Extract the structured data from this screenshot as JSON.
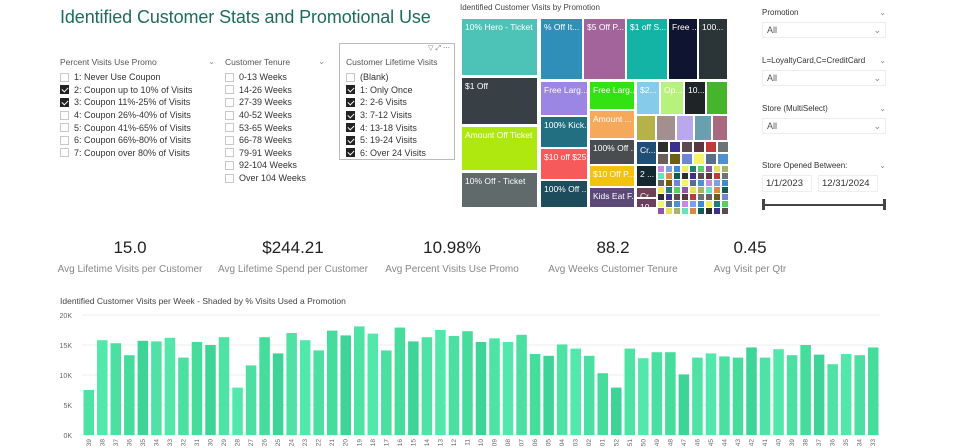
{
  "title": "Identified Customer Stats and Promotional Use",
  "slicers": {
    "promo": {
      "title": "Percent Visits Use Promo",
      "items": [
        {
          "label": "1: Never Use Coupon",
          "checked": false
        },
        {
          "label": "2: Coupon up to 10% of Visits",
          "checked": true
        },
        {
          "label": "3: Coupon 11%-25% of Visits",
          "checked": true
        },
        {
          "label": "4: Coupon 26%-40% of Visits",
          "checked": false
        },
        {
          "label": "5: Coupon 41%-65% of Visits",
          "checked": false
        },
        {
          "label": "6: Coupon 66%-80% of Visits",
          "checked": false
        },
        {
          "label": "7: Coupon over 80% of Visits",
          "checked": false
        }
      ]
    },
    "tenure": {
      "title": "Customer Tenure",
      "items": [
        {
          "label": "0-13 Weeks",
          "checked": false
        },
        {
          "label": "14-26 Weeks",
          "checked": false
        },
        {
          "label": "27-39 Weeks",
          "checked": false
        },
        {
          "label": "40-52 Weeks",
          "checked": false
        },
        {
          "label": "53-65 Weeks",
          "checked": false
        },
        {
          "label": "66-78 Weeks",
          "checked": false
        },
        {
          "label": "79-91 Weeks",
          "checked": false
        },
        {
          "label": "92-104 Weeks",
          "checked": false
        },
        {
          "label": "Over 104 Weeks",
          "checked": false
        }
      ]
    },
    "lifetime": {
      "title": "Customer Lifetime Visits",
      "items": [
        {
          "label": "(Blank)",
          "checked": false
        },
        {
          "label": "1: Only Once",
          "checked": true
        },
        {
          "label": "2: 2-6 Visits",
          "checked": true
        },
        {
          "label": "3: 7-12 Visits",
          "checked": true
        },
        {
          "label": "4: 13-18 Visits",
          "checked": true
        },
        {
          "label": "5: 19-24 Visits",
          "checked": true
        },
        {
          "label": "6: Over 24 Visits",
          "checked": true
        }
      ]
    }
  },
  "treemap": {
    "title": "Identified Customer Visits by Promotion",
    "tiles": [
      {
        "label": "10% Hero - Ticket",
        "color": "#4cc3b6"
      },
      {
        "label": "$1 Off",
        "color": "#394045"
      },
      {
        "label": "Amount Off Ticket",
        "color": "#aee80e"
      },
      {
        "label": "10% Off - Ticket",
        "color": "#616a6b"
      },
      {
        "label": "% Off It...",
        "color": "#2f8fb8"
      },
      {
        "label": "$5 Off P...",
        "color": "#a3639b"
      },
      {
        "label": "$1 off S...",
        "color": "#13b3a6"
      },
      {
        "label": "Free ...",
        "color": "#0f1530"
      },
      {
        "label": "100...",
        "color": "#2b3436"
      },
      {
        "label": "Free Larg...",
        "color": "#9b86e4"
      },
      {
        "label": "100% Kick...",
        "color": "#236f82"
      },
      {
        "label": "$10 off $25",
        "color": "#f75a5a"
      },
      {
        "label": "100% Off ...",
        "color": "#1d4c5c"
      },
      {
        "label": "Free Larg...",
        "color": "#33e213"
      },
      {
        "label": "Amount ...",
        "color": "#f6a95a"
      },
      {
        "label": "100% Off ...",
        "color": "#4a4d50"
      },
      {
        "label": "$10 Off P...",
        "color": "#f1c20e"
      },
      {
        "label": "Kids Eat F...",
        "color": "#5b4a78"
      },
      {
        "label": "$2...",
        "color": "#86cbe9"
      },
      {
        "label": "Op...",
        "color": "#b7f37c"
      },
      {
        "label": "10...",
        "color": "#1f2426"
      },
      {
        "label": "",
        "color": "#46b52c"
      },
      {
        "label": "",
        "color": "#b5b24a"
      },
      {
        "label": "",
        "color": "#a38f8f"
      },
      {
        "label": "",
        "color": "#b9a8ea"
      },
      {
        "label": "",
        "color": "#6a9fb0"
      },
      {
        "label": "",
        "color": "#a86a7e"
      },
      {
        "label": "Cr...",
        "color": "#1f4f77"
      },
      {
        "label": "2 ...",
        "color": "#14292f"
      },
      {
        "label": "Cr...",
        "color": "#6e4157"
      },
      {
        "label": "10...",
        "color": "#6a3f60"
      }
    ],
    "small_colors": [
      "#2b2d2f",
      "#3c2f8f",
      "#5b4a4e",
      "#5b3640",
      "#c0393d",
      "#6d7274",
      "#6b5e60",
      "#6f5e14",
      "#6d87d4",
      "#f5f36a",
      "#5a6d8b",
      "#4d91d4",
      "#c48ae6",
      "#7aa2e6",
      "#3f8ad6",
      "#f2ed57",
      "#1e7f76",
      "#55d15f",
      "#8f56a8",
      "#e7e05a",
      "#a7b36a",
      "#66e2c0",
      "#d88a4a",
      "#115d52"
    ]
  },
  "right_slicers": [
    {
      "title": "Promotion",
      "value": "All"
    },
    {
      "title": "L=LoyaltyCard,C=CreditCard",
      "value": "All"
    },
    {
      "title": "Store (MultiSelect)",
      "value": "All"
    }
  ],
  "date_slicer": {
    "title": "Store Opened Between:",
    "start": "1/1/2023",
    "end": "12/31/2024"
  },
  "kpis": [
    {
      "value": "15.0",
      "label": "Avg Lifetime Visits per Customer"
    },
    {
      "value": "$244.21",
      "label": "Avg Lifetime Spend per Customer"
    },
    {
      "value": "10.98%",
      "label": "Avg Percent Visits Use Promo"
    },
    {
      "value": "88.2",
      "label": "Avg Weeks Customer Tenure"
    },
    {
      "value": "0.45",
      "label": "Avg Visit per Qtr"
    }
  ],
  "chart_data": {
    "type": "bar",
    "title": "Identified Customer Visits per Week - Shaded by % Visits Used a Promotion",
    "ylim": [
      0,
      20000
    ],
    "yticks": [
      "0K",
      "5K",
      "10K",
      "15K",
      "20K"
    ],
    "grid": true,
    "color": "#4ee3a4",
    "categories": [
      "39",
      "38",
      "37",
      "36",
      "35",
      "34",
      "33",
      "32",
      "31",
      "30",
      "29",
      "28",
      "27",
      "26",
      "25",
      "24",
      "23",
      "22",
      "21",
      "20",
      "19",
      "18",
      "17",
      "16",
      "15",
      "14",
      "13",
      "12",
      "11",
      "10",
      "09",
      "08",
      "07",
      "06",
      "05",
      "04",
      "03",
      "02",
      "01",
      "52",
      "51",
      "50",
      "49",
      "48",
      "47",
      "46",
      "45",
      "44",
      "43",
      "42",
      "41",
      "40",
      "39",
      "38",
      "37",
      "36",
      "35",
      "34",
      "33"
    ],
    "values": [
      7500,
      15800,
      15300,
      13300,
      15700,
      15600,
      16200,
      12900,
      15500,
      15000,
      16300,
      7900,
      11600,
      16300,
      13600,
      17000,
      15800,
      14100,
      17400,
      16600,
      18100,
      16900,
      14100,
      17900,
      15600,
      16300,
      17500,
      16500,
      17300,
      15500,
      16100,
      15500,
      16700,
      13500,
      13200,
      15100,
      14400,
      13200,
      10300,
      7900,
      14400,
      12800,
      13800,
      13800,
      10100,
      12900,
      13600,
      13100,
      12900,
      14600,
      12900,
      14300,
      13300,
      15000,
      13400,
      11800,
      13500,
      13300,
      14600
    ]
  }
}
